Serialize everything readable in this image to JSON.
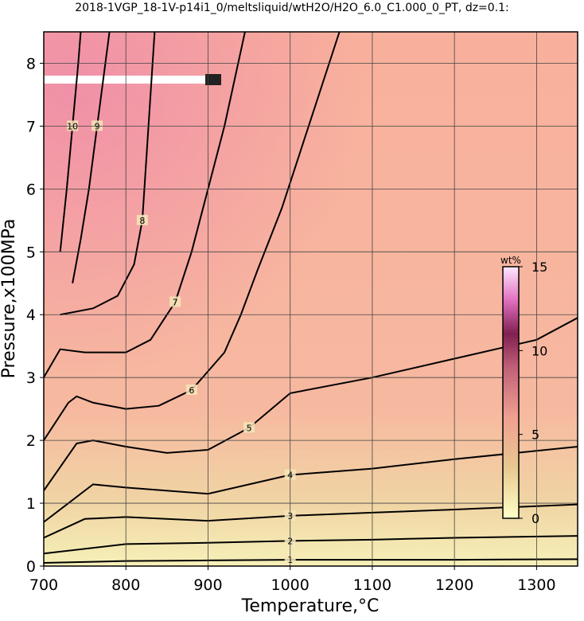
{
  "chart_data": {
    "type": "contour",
    "title": "2018-1VGP_18-1V-p14i1_0/meltsliquid/wtH2O/H2O_6.0_C1.000_0_PT, dz=0.1:",
    "x_label": "Temperature,°C",
    "y_label": "Pressure,x100MPa",
    "xlim": [
      700,
      1350
    ],
    "ylim": [
      0,
      8.5
    ],
    "xticks": [
      700,
      800,
      900,
      1000,
      1100,
      1200,
      1300
    ],
    "yticks": [
      0,
      1,
      2,
      3,
      4,
      5,
      6,
      7,
      8
    ],
    "grid": true,
    "line_color": "#000000",
    "contours": [
      {
        "level": 1,
        "x": [
          700,
          800,
          900,
          1000,
          1100,
          1200,
          1350
        ],
        "y": [
          0.05,
          0.08,
          0.09,
          0.1,
          0.1,
          0.1,
          0.11
        ]
      },
      {
        "level": 2,
        "x": [
          700,
          800,
          900,
          1000,
          1100,
          1200,
          1350
        ],
        "y": [
          0.2,
          0.35,
          0.37,
          0.4,
          0.42,
          0.45,
          0.48
        ]
      },
      {
        "level": 3,
        "x": [
          700,
          750,
          800,
          900,
          1000,
          1100,
          1200,
          1350
        ],
        "y": [
          0.45,
          0.75,
          0.78,
          0.72,
          0.8,
          0.85,
          0.9,
          0.98
        ]
      },
      {
        "level": 4,
        "x": [
          700,
          760,
          800,
          900,
          1000,
          1100,
          1200,
          1350
        ],
        "y": [
          0.7,
          1.3,
          1.25,
          1.15,
          1.45,
          1.55,
          1.7,
          1.9
        ]
      },
      {
        "level": 5,
        "x": [
          700,
          740,
          760,
          800,
          850,
          900,
          950,
          1000,
          1100,
          1200,
          1300,
          1350
        ],
        "y": [
          1.2,
          1.95,
          2.0,
          1.9,
          1.8,
          1.85,
          2.2,
          2.75,
          3.0,
          3.3,
          3.6,
          3.95
        ]
      },
      {
        "level": 6,
        "x": [
          700,
          730,
          740,
          760,
          800,
          840,
          880,
          920,
          940,
          960,
          990,
          1010,
          1060
        ],
        "y": [
          2.0,
          2.6,
          2.7,
          2.6,
          2.5,
          2.55,
          2.8,
          3.4,
          4.0,
          4.7,
          5.7,
          6.5,
          8.5
        ]
      },
      {
        "level": 7,
        "x": [
          700,
          720,
          750,
          800,
          830,
          860,
          880,
          900,
          920,
          930,
          945
        ],
        "y": [
          3.0,
          3.45,
          3.4,
          3.4,
          3.6,
          4.2,
          5.0,
          6.0,
          7.0,
          7.6,
          8.5
        ]
      },
      {
        "level": 8,
        "x": [
          720,
          760,
          790,
          810,
          820,
          825,
          830,
          835
        ],
        "y": [
          4.0,
          4.1,
          4.3,
          4.8,
          5.5,
          6.5,
          7.5,
          8.5
        ]
      },
      {
        "level": 9,
        "x": [
          735,
          745,
          755,
          765,
          775,
          780
        ],
        "y": [
          4.5,
          5.2,
          6.0,
          7.0,
          8.0,
          8.5
        ]
      },
      {
        "level": 10,
        "x": [
          720,
          728,
          735,
          742,
          745
        ],
        "y": [
          5.0,
          6.0,
          7.0,
          8.0,
          8.5
        ]
      }
    ],
    "colorbar": {
      "label": "wt%",
      "lim": [
        0,
        15
      ],
      "ticks": [
        0,
        5,
        10,
        15
      ],
      "stops": [
        {
          "value": 0,
          "color": "#ffffc8"
        },
        {
          "value": 3,
          "color": "#e8c890"
        },
        {
          "value": 6,
          "color": "#f0a090"
        },
        {
          "value": 9,
          "color": "#c06078"
        },
        {
          "value": 11,
          "color": "#802050"
        },
        {
          "value": 13,
          "color": "#e070c0"
        },
        {
          "value": 15,
          "color": "#ffe8ff"
        }
      ]
    }
  }
}
